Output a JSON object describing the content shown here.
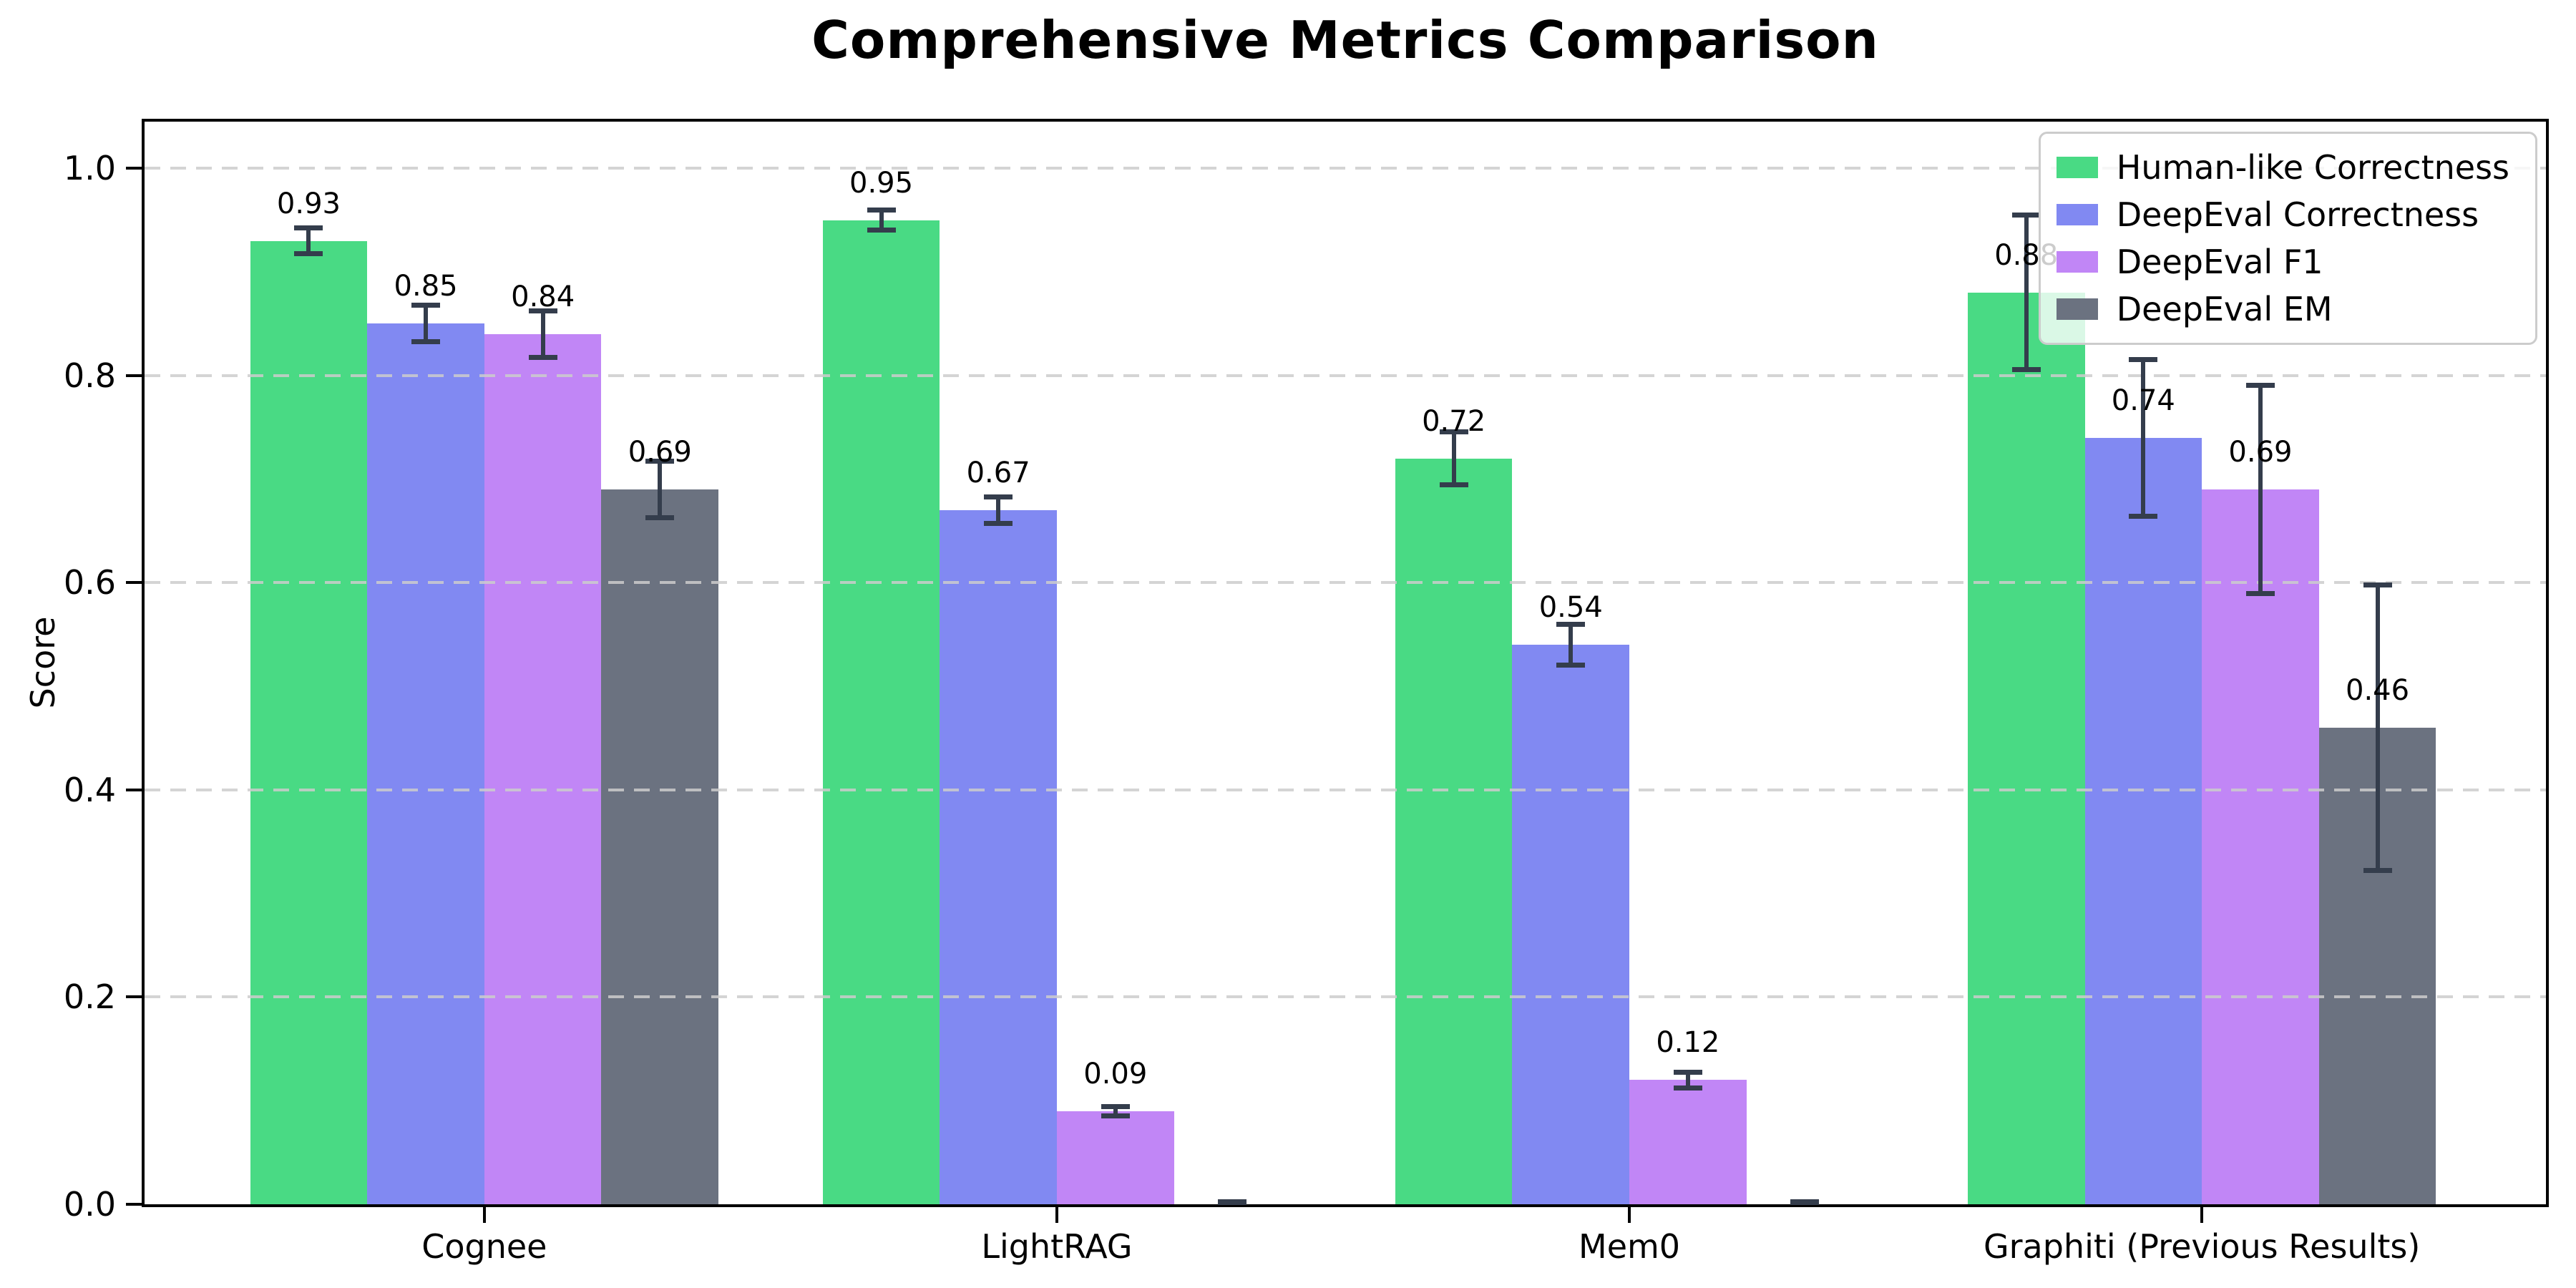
{
  "title": "Comprehensive Metrics Comparison",
  "chart_data": {
    "type": "bar",
    "title": "Comprehensive Metrics Comparison",
    "xlabel": "",
    "ylabel": "Score",
    "categories": [
      "Cognee",
      "LightRAG",
      "Mem0",
      "Graphiti (Previous Results)"
    ],
    "series": [
      {
        "name": "Human-like Correctness",
        "color": "#49da84",
        "values": [
          0.93,
          0.95,
          0.72,
          0.88
        ],
        "errors": [
          0.015,
          0.012,
          0.028,
          0.077
        ],
        "labels": [
          "0.93",
          "0.95",
          "0.72",
          "0.88"
        ]
      },
      {
        "name": "DeepEval Correctness",
        "color": "#8189f2",
        "values": [
          0.85,
          0.67,
          0.54,
          0.74
        ],
        "errors": [
          0.02,
          0.015,
          0.022,
          0.078
        ],
        "labels": [
          "0.85",
          "0.67",
          "0.54",
          "0.74"
        ]
      },
      {
        "name": "DeepEval F1",
        "color": "#c186f6",
        "values": [
          0.84,
          0.09,
          0.12,
          0.69
        ],
        "errors": [
          0.025,
          0.007,
          0.01,
          0.103
        ],
        "labels": [
          "0.84",
          "0.09",
          "0.12",
          "0.69"
        ]
      },
      {
        "name": "DeepEval EM",
        "color": "#6b7280",
        "values": [
          0.69,
          0.0,
          0.0,
          0.46
        ],
        "errors": [
          0.03,
          0.004,
          0.004,
          0.14
        ],
        "labels": [
          "0.69",
          "",
          "",
          "0.46"
        ]
      }
    ],
    "yticks": [
      "0.0",
      "0.2",
      "0.4",
      "0.6",
      "0.8",
      "1.0"
    ],
    "ylim": [
      0,
      1.045
    ],
    "grid": "horizontal-dashed",
    "legend_position": "upper-right",
    "error_bar_color": "#343d4c"
  }
}
